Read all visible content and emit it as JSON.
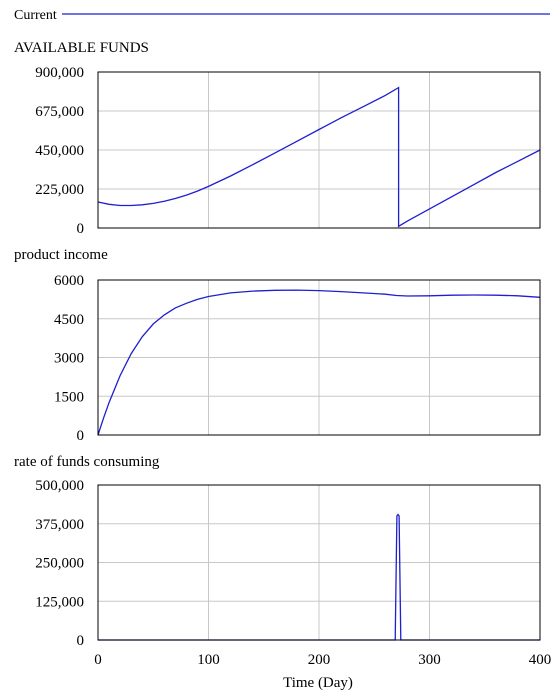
{
  "legend": {
    "label": "Current",
    "color": "#1f1fd0"
  },
  "x_axis": {
    "label": "Time (Day)",
    "ticks": [
      "0",
      "100",
      "200",
      "300",
      "400"
    ]
  },
  "chart_data": [
    {
      "type": "line",
      "title": "AVAILABLE FUNDS",
      "xlim": [
        0,
        400
      ],
      "ylim": [
        0,
        900000
      ],
      "ytick_labels": [
        "900,000",
        "675,000",
        "450,000",
        "225,000",
        "0"
      ],
      "grid": true,
      "series": [
        {
          "name": "Current",
          "color": "#1f1fd0",
          "x": [
            0,
            10,
            20,
            30,
            40,
            50,
            60,
            70,
            80,
            90,
            100,
            120,
            140,
            160,
            180,
            200,
            220,
            240,
            260,
            272,
            272,
            280,
            300,
            320,
            340,
            360,
            380,
            400
          ],
          "y": [
            150000,
            137000,
            130000,
            130000,
            134000,
            142000,
            154000,
            170000,
            190000,
            213000,
            240000,
            300000,
            365000,
            432000,
            500000,
            568000,
            636000,
            700000,
            765000,
            810000,
            10000,
            40000,
            110000,
            180000,
            250000,
            320000,
            385000,
            450000
          ]
        }
      ]
    },
    {
      "type": "line",
      "title": "product income",
      "xlim": [
        0,
        400
      ],
      "ylim": [
        0,
        6000
      ],
      "ytick_labels": [
        "6000",
        "4500",
        "3000",
        "1500",
        "0"
      ],
      "grid": true,
      "series": [
        {
          "name": "Current",
          "color": "#1f1fd0",
          "x": [
            0,
            5,
            10,
            20,
            30,
            40,
            50,
            60,
            70,
            80,
            90,
            100,
            120,
            140,
            160,
            180,
            200,
            220,
            240,
            260,
            270,
            280,
            300,
            320,
            340,
            360,
            380,
            400
          ],
          "y": [
            0,
            650,
            1250,
            2300,
            3150,
            3800,
            4300,
            4650,
            4920,
            5100,
            5250,
            5360,
            5500,
            5570,
            5600,
            5610,
            5590,
            5550,
            5500,
            5450,
            5400,
            5380,
            5390,
            5410,
            5420,
            5410,
            5390,
            5330
          ]
        }
      ]
    },
    {
      "type": "line",
      "title": "rate of funds consuming",
      "xlim": [
        0,
        400
      ],
      "ylim": [
        0,
        500000
      ],
      "ytick_labels": [
        "500,000",
        "375,000",
        "250,000",
        "125,000",
        "0"
      ],
      "grid": true,
      "series": [
        {
          "name": "Current",
          "color": "#1f1fd0",
          "x": [
            0,
            269,
            270.5,
            271.5,
            272.5,
            274,
            400
          ],
          "y": [
            0,
            0,
            400000,
            405000,
            400000,
            0,
            0
          ]
        }
      ]
    }
  ]
}
